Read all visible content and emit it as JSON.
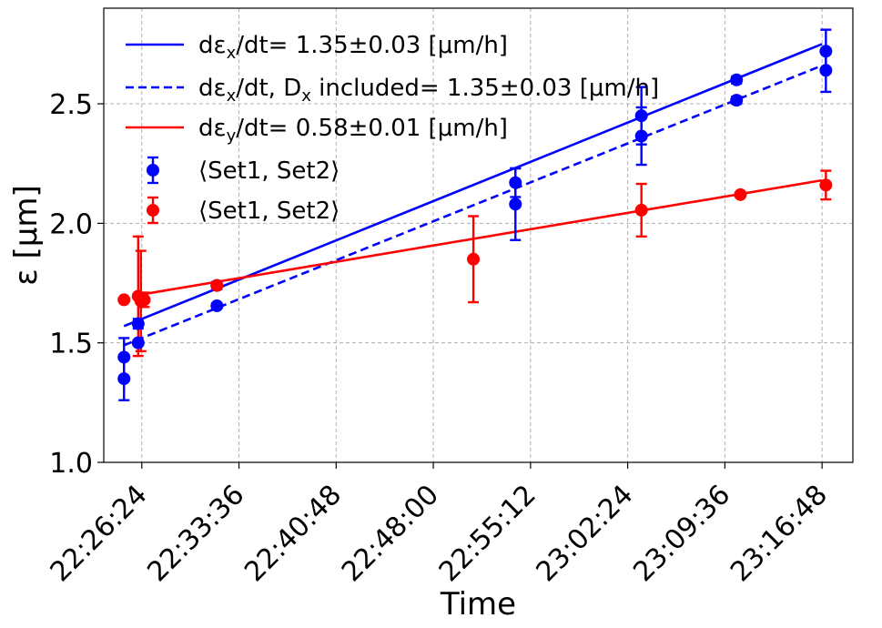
{
  "chart_data": {
    "type": "scatter",
    "xlabel": "Time",
    "ylabel": "ε [μm]",
    "x_ticks": [
      "22:26:24",
      "22:33:36",
      "22:40:48",
      "22:48:00",
      "22:55:12",
      "23:02:24",
      "23:09:36",
      "23:16:48"
    ],
    "x_tick_seconds": [
      80784,
      81216,
      81648,
      82080,
      82512,
      82944,
      83376,
      83808
    ],
    "xlim": [
      "22:23:35",
      "23:19:05"
    ],
    "xlim_seconds": [
      80615,
      83945
    ],
    "y_ticks": [
      "1.0",
      "1.5",
      "2.0",
      "2.5"
    ],
    "ylim": [
      1.0,
      2.9
    ],
    "grid": true,
    "legend_position": "upper-left",
    "colors": {
      "x": "#0000ff",
      "y": "#ff0000",
      "grid": "#b0b0b0"
    },
    "fits": [
      {
        "name_prefix": "dε",
        "name_sub": "x",
        "name_suffix": "/dt= 1.35±0.03 [μm/h]",
        "style": "solid",
        "color": "#0000ff",
        "x": [
          "22:25:05",
          "23:16:48"
        ],
        "x_seconds": [
          80705,
          83808
        ],
        "y": [
          1.57,
          2.75
        ]
      },
      {
        "name_prefix": "dε",
        "name_sub": "x",
        "name_mid": "/dt,  D",
        "name_sub2": "x",
        "name_suffix": " included= 1.35±0.03 [μm/h]",
        "style": "dashed",
        "color": "#0000ff",
        "x": [
          "22:25:05",
          "23:16:48"
        ],
        "x_seconds": [
          80705,
          83808
        ],
        "y": [
          1.49,
          2.66
        ]
      },
      {
        "name_prefix": "dε",
        "name_sub": "y",
        "name_suffix": "/dt= 0.58±0.01 [μm/h]",
        "style": "solid",
        "color": "#ff0000",
        "x": [
          "22:26:08",
          "23:16:48"
        ],
        "x_seconds": [
          80768,
          83808
        ],
        "y": [
          1.7,
          2.18
        ]
      }
    ],
    "series": [
      {
        "name": "⟨Set1, Set2⟩",
        "color": "#0000ff",
        "x": [
          "22:25:05",
          "22:25:05",
          "22:26:08",
          "22:26:08",
          "22:31:58",
          "22:31:58",
          "22:54:05",
          "22:54:05",
          "23:03:25",
          "23:03:25",
          "23:10:28",
          "23:10:28",
          "23:17:05",
          "23:17:05"
        ],
        "x_seconds": [
          80705,
          80705,
          80768,
          80768,
          81118,
          81118,
          82445,
          82445,
          83005,
          83005,
          83428,
          83428,
          83825,
          83825
        ],
        "y": [
          1.44,
          1.35,
          1.58,
          1.5,
          1.74,
          1.655,
          2.17,
          2.08,
          2.45,
          2.365,
          2.6,
          2.515,
          2.72,
          2.64
        ],
        "yerr": [
          0.08,
          0.09,
          0.02,
          0.01,
          0.015,
          0.01,
          0.06,
          0.15,
          0.12,
          0.12,
          0.015,
          0.015,
          0.09,
          0.09
        ]
      },
      {
        "name": "⟨Set1, Set2⟩",
        "color": "#ff0000",
        "x": [
          "22:25:05",
          "22:26:08",
          "22:26:20",
          "22:26:35",
          "22:31:58",
          "22:50:58",
          "23:03:25",
          "23:10:45",
          "23:17:05"
        ],
        "x_seconds": [
          80705,
          80768,
          80780,
          80795,
          81118,
          82258,
          83005,
          83445,
          83825
        ],
        "y": [
          1.68,
          1.695,
          1.675,
          1.68,
          1.74,
          1.85,
          2.055,
          2.12,
          2.16
        ],
        "yerr": [
          0.0,
          0.25,
          0.21,
          0.03,
          0.0,
          0.18,
          0.11,
          0.0,
          0.06
        ]
      }
    ]
  }
}
